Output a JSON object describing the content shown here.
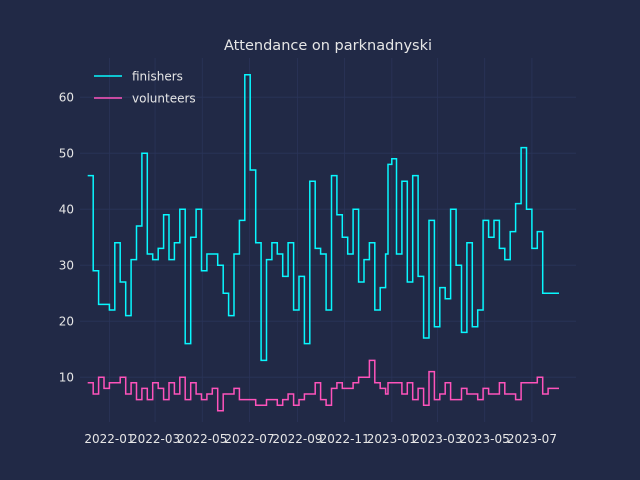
{
  "chart_data": {
    "type": "line",
    "drawstyle": "steps-post",
    "title": "Attendance on parknadnyski",
    "xlabel": "",
    "ylabel": "",
    "grid": true,
    "legend": "top-left",
    "ylim": [
      2,
      67
    ],
    "xlim": [
      "2021-11-24",
      "2023-08-27"
    ],
    "xticks": [
      "2022-01",
      "2022-03",
      "2022-05",
      "2022-07",
      "2022-09",
      "2022-11",
      "2023-01",
      "2023-03",
      "2023-05",
      "2023-07"
    ],
    "yticks": [
      10,
      20,
      30,
      40,
      50,
      60
    ],
    "x": [
      "2021-12-04",
      "2021-12-11",
      "2021-12-18",
      "2021-12-25",
      "2022-01-01",
      "2022-01-08",
      "2022-01-15",
      "2022-01-22",
      "2022-01-29",
      "2022-02-05",
      "2022-02-12",
      "2022-02-19",
      "2022-02-26",
      "2022-03-05",
      "2022-03-12",
      "2022-03-19",
      "2022-03-26",
      "2022-04-02",
      "2022-04-09",
      "2022-04-16",
      "2022-04-23",
      "2022-04-30",
      "2022-05-07",
      "2022-05-14",
      "2022-05-21",
      "2022-05-28",
      "2022-06-04",
      "2022-06-11",
      "2022-06-18",
      "2022-06-25",
      "2022-07-02",
      "2022-07-09",
      "2022-07-16",
      "2022-07-23",
      "2022-07-30",
      "2022-08-06",
      "2022-08-13",
      "2022-08-20",
      "2022-08-27",
      "2022-09-03",
      "2022-09-10",
      "2022-09-17",
      "2022-09-24",
      "2022-10-01",
      "2022-10-08",
      "2022-10-15",
      "2022-10-22",
      "2022-10-29",
      "2022-11-05",
      "2022-11-12",
      "2022-11-19",
      "2022-11-26",
      "2022-12-03",
      "2022-12-10",
      "2022-12-17",
      "2022-12-24",
      "2022-12-27",
      "2023-01-01",
      "2023-01-07",
      "2023-01-14",
      "2023-01-21",
      "2023-01-28",
      "2023-02-04",
      "2023-02-11",
      "2023-02-18",
      "2023-02-25",
      "2023-03-04",
      "2023-03-11",
      "2023-03-18",
      "2023-03-25",
      "2023-04-01",
      "2023-04-08",
      "2023-04-15",
      "2023-04-22",
      "2023-04-29",
      "2023-05-06",
      "2023-05-13",
      "2023-05-20",
      "2023-05-27",
      "2023-06-03",
      "2023-06-10",
      "2023-06-17",
      "2023-06-24",
      "2023-07-01",
      "2023-07-08",
      "2023-07-15",
      "2023-07-22",
      "2023-07-29",
      "2023-08-05"
    ],
    "series": [
      {
        "name": "finishers",
        "color": "#08F7FE",
        "values": [
          46,
          29,
          23,
          23,
          22,
          34,
          27,
          21,
          31,
          37,
          50,
          32,
          31,
          33,
          39,
          31,
          34,
          40,
          16,
          35,
          40,
          29,
          32,
          32,
          30,
          25,
          21,
          32,
          38,
          64,
          47,
          34,
          13,
          31,
          34,
          32,
          28,
          34,
          22,
          28,
          16,
          45,
          33,
          32,
          22,
          46,
          39,
          35,
          32,
          40,
          27,
          31,
          34,
          22,
          26,
          32,
          48,
          49,
          32,
          45,
          27,
          46,
          28,
          17,
          38,
          19,
          26,
          24,
          40,
          30,
          18,
          34,
          19,
          22,
          38,
          35,
          38,
          33,
          31,
          36,
          41,
          51,
          40,
          33,
          36,
          25,
          25,
          25,
          25
        ]
      },
      {
        "name": "volunteers",
        "color": "#FE53BB",
        "values": [
          9,
          7,
          10,
          8,
          9,
          9,
          10,
          7,
          9,
          6,
          8,
          6,
          9,
          8,
          6,
          9,
          7,
          10,
          6,
          9,
          7,
          6,
          7,
          8,
          4,
          7,
          7,
          8,
          6,
          6,
          6,
          5,
          5,
          6,
          6,
          5,
          6,
          7,
          5,
          6,
          7,
          7,
          9,
          6,
          5,
          8,
          9,
          8,
          8,
          9,
          10,
          10,
          13,
          9,
          8,
          7,
          9,
          9,
          9,
          7,
          9,
          6,
          8,
          5,
          11,
          6,
          7,
          9,
          6,
          6,
          8,
          7,
          7,
          6,
          8,
          7,
          7,
          9,
          7,
          7,
          6,
          9,
          9,
          9,
          10,
          7,
          8,
          8,
          8
        ]
      }
    ]
  }
}
